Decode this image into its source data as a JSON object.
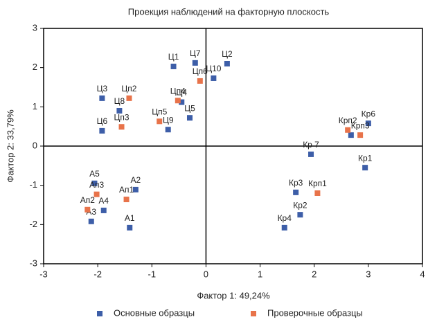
{
  "chart_data": {
    "type": "scatter",
    "title": "Проекция наблюдений на факторную плоскость",
    "x_label": "Фактор 1: 49,24%",
    "y_label": "Фактор 2: 33,79%",
    "xlim": [
      -3,
      4
    ],
    "ylim": [
      -3,
      3
    ],
    "xticks": [
      -3,
      -2,
      -1,
      0,
      1,
      2,
      3,
      4
    ],
    "yticks": [
      -3,
      -2,
      -1,
      0,
      1,
      2,
      3
    ],
    "zero_lines": true,
    "series": [
      {
        "name": "Основные образцы",
        "color": "#3d5ea8",
        "labels": [
          "Ц1",
          "Ц7",
          "Ц2",
          "Ц10",
          "Ц3",
          "Ц8",
          "Ц6",
          "Ц9",
          "Ц5",
          "Ц4",
          "Кр6",
          null,
          "Кр 7",
          "Кр1",
          "Кр3",
          "Кр2",
          "Кр4",
          "А5",
          "А2",
          "А4",
          "А3",
          "А1"
        ],
        "x": [
          -0.6,
          -0.2,
          0.39,
          0.14,
          -1.92,
          -1.6,
          -1.92,
          -0.7,
          -0.3,
          -0.45,
          3.0,
          2.68,
          1.94,
          2.94,
          1.66,
          1.74,
          1.45,
          -2.06,
          -1.3,
          -1.89,
          -2.12,
          -1.41
        ],
        "values": [
          2.03,
          2.12,
          2.1,
          1.73,
          1.22,
          0.9,
          0.39,
          0.42,
          0.72,
          1.12,
          0.58,
          0.28,
          -0.21,
          -0.55,
          -1.18,
          -1.75,
          -2.08,
          -0.95,
          -1.11,
          -1.64,
          -1.92,
          -2.08
        ]
      },
      {
        "name": "Проверочные образцы",
        "color": "#e8734a",
        "labels": [
          "Цп2",
          "Цп3",
          "Цп5",
          "Цп4",
          "Цп6",
          "Крп2",
          "Крп3",
          "Крп1",
          "Ап1",
          "Ап3",
          "Ап2"
        ],
        "x": [
          -1.42,
          -1.56,
          -0.86,
          -0.52,
          -0.11,
          2.62,
          2.85,
          2.06,
          -1.47,
          -2.02,
          -2.19
        ],
        "values": [
          1.22,
          0.49,
          0.63,
          1.16,
          1.66,
          0.41,
          0.28,
          -1.2,
          -1.36,
          -1.23,
          -1.62
        ]
      }
    ]
  }
}
